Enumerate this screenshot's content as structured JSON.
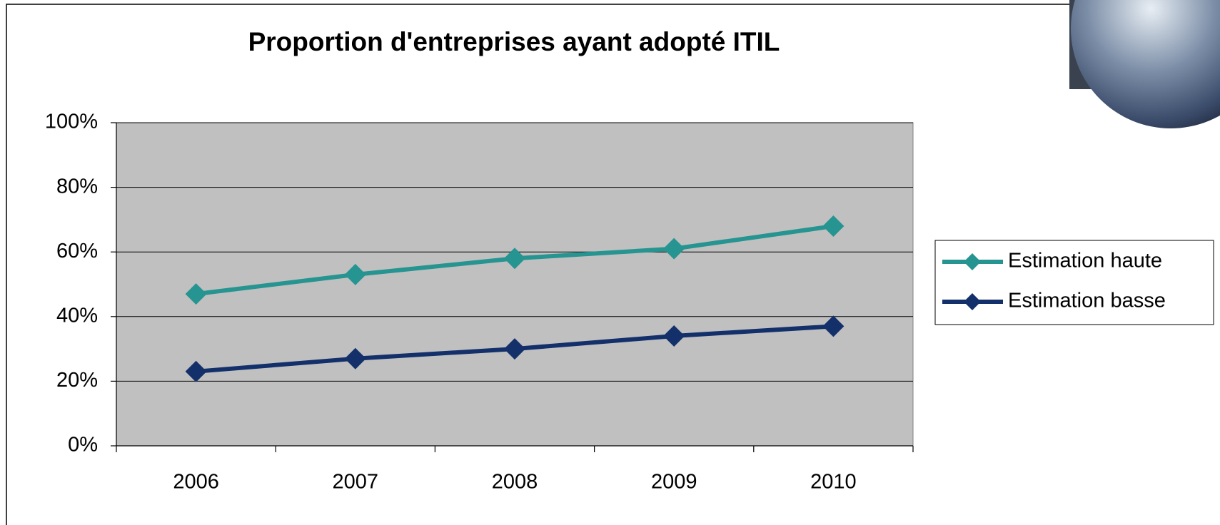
{
  "chart_data": {
    "type": "line",
    "title": "Proportion d'entreprises ayant adopté ITIL",
    "categories": [
      "2006",
      "2007",
      "2008",
      "2009",
      "2010"
    ],
    "series": [
      {
        "name": "Estimation haute",
        "color": "#269490",
        "values": [
          47,
          53,
          58,
          61,
          68
        ]
      },
      {
        "name": "Estimation basse",
        "color": "#13306b",
        "values": [
          23,
          27,
          30,
          34,
          37
        ]
      }
    ],
    "ylim": [
      0,
      100
    ],
    "yticks": [
      {
        "value": 0,
        "label": "0%"
      },
      {
        "value": 20,
        "label": "20%"
      },
      {
        "value": 40,
        "label": "40%"
      },
      {
        "value": 60,
        "label": "60%"
      },
      {
        "value": 80,
        "label": "80%"
      },
      {
        "value": 100,
        "label": "100%"
      }
    ],
    "grid": true,
    "legend": "right"
  }
}
